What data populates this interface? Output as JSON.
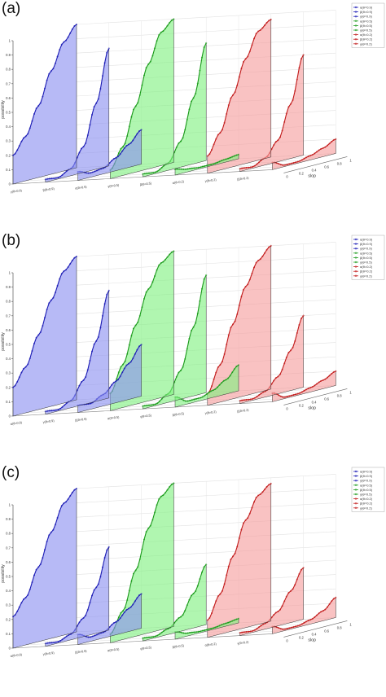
{
  "chart_data": [
    {
      "type": "line",
      "panel_label": "(a)",
      "chart_kind": "3d ribbon line",
      "ylabel": "possibility",
      "xlabel": "slop",
      "zlim": [
        0,
        1
      ],
      "z_ticks": [
        "0",
        "0.1",
        "0.2",
        "0.3",
        "0.4",
        "0.5",
        "0.6",
        "0.7",
        "0.8",
        "0.9",
        "1"
      ],
      "slop_ticks": [
        "0",
        "0.2",
        "0.4",
        "0.6",
        "0.8",
        "1"
      ],
      "grid": true,
      "legend_position": "top-right",
      "groups": [
        {
          "color": "#8a8ff0",
          "dark": "#1b1bb5"
        },
        {
          "color": "#80f080",
          "dark": "#1a9a1a"
        },
        {
          "color": "#f59c9c",
          "dark": "#c21a1a"
        }
      ],
      "series": [
        {
          "name": "α(θ=0.9)",
          "group": 0,
          "slop": [
            0,
            0.2,
            0.4,
            0.6,
            0.8,
            1
          ],
          "values": [
            0.2,
            0.31,
            0.5,
            0.72,
            0.9,
            1.0
          ]
        },
        {
          "name": "β(θ=0.9)",
          "group": 0,
          "slop": [
            0,
            0.2,
            0.4,
            0.6,
            0.8,
            1
          ],
          "values": [
            0.02,
            0.01,
            0.05,
            0.18,
            0.46,
            0.82
          ]
        },
        {
          "name": "γ(θ=0.9)",
          "group": 0,
          "slop": [
            0,
            0.2,
            0.4,
            0.6,
            0.8,
            1
          ],
          "values": [
            0.06,
            0.03,
            0.04,
            0.09,
            0.16,
            0.24
          ]
        },
        {
          "name": "α(θ=0.5)",
          "group": 1,
          "slop": [
            0,
            0.2,
            0.4,
            0.6,
            0.8,
            1
          ],
          "values": [
            0.06,
            0.2,
            0.46,
            0.73,
            0.93,
            1.0
          ]
        },
        {
          "name": "β(θ=0.5)",
          "group": 1,
          "slop": [
            0,
            0.2,
            0.4,
            0.6,
            0.8,
            1
          ],
          "values": [
            0.02,
            0.01,
            0.05,
            0.18,
            0.46,
            0.82
          ]
        },
        {
          "name": "γ(θ=0.5)",
          "group": 1,
          "slop": [
            0,
            0.2,
            0.4,
            0.6,
            0.8,
            1
          ],
          "values": [
            0.04,
            0.02,
            0.01,
            0.01,
            0.02,
            0.03
          ]
        },
        {
          "name": "α(θ=0.2)",
          "group": 2,
          "slop": [
            0,
            0.2,
            0.4,
            0.6,
            0.8,
            1
          ],
          "values": [
            0.12,
            0.26,
            0.5,
            0.73,
            0.9,
            0.96
          ]
        },
        {
          "name": "β(θ=0.2)",
          "group": 2,
          "slop": [
            0,
            0.2,
            0.4,
            0.6,
            0.8,
            1
          ],
          "values": [
            0.02,
            0.01,
            0.05,
            0.15,
            0.38,
            0.7
          ]
        },
        {
          "name": "γ(θ=0.2)",
          "group": 2,
          "slop": [
            0,
            0.2,
            0.4,
            0.6,
            0.8,
            1
          ],
          "values": [
            0.05,
            0.01,
            0.01,
            0.03,
            0.06,
            0.1
          ]
        }
      ],
      "axis_labels": [
        "γ(θ=0.9)",
        "β(θ=0.9)",
        "α(θ=0.5)",
        "γ(θ=0.5)",
        "β(θ=0.5)",
        "α(θ=0.2)",
        "γ(θ=0.2)",
        "β(θ=0.2)"
      ]
    },
    {
      "type": "line",
      "panel_label": "(b)",
      "chart_kind": "3d ribbon line",
      "ylabel": "possibility",
      "xlabel": "slop",
      "zlim": [
        0,
        1
      ],
      "z_ticks": [
        "0",
        "0.1",
        "0.2",
        "0.3",
        "0.4",
        "0.5",
        "0.6",
        "0.7",
        "0.8",
        "0.9",
        "1"
      ],
      "slop_ticks": [
        "0",
        "0.2",
        "0.4",
        "0.6",
        "0.8",
        "1"
      ],
      "grid": true,
      "legend_position": "top-right",
      "groups": [
        {
          "color": "#8a8ff0",
          "dark": "#1b1bb5"
        },
        {
          "color": "#80f080",
          "dark": "#1a9a1a"
        },
        {
          "color": "#f59c9c",
          "dark": "#c21a1a"
        }
      ],
      "series": [
        {
          "name": "α(θ=0.9)",
          "group": 0,
          "slop": [
            0,
            0.2,
            0.4,
            0.6,
            0.8,
            1
          ],
          "values": [
            0.2,
            0.32,
            0.52,
            0.74,
            0.92,
            1.0
          ]
        },
        {
          "name": "β(θ=0.9)",
          "group": 0,
          "slop": [
            0,
            0.2,
            0.4,
            0.6,
            0.8,
            1
          ],
          "values": [
            0.02,
            0.01,
            0.05,
            0.17,
            0.42,
            0.75
          ]
        },
        {
          "name": "γ(θ=0.9)",
          "group": 0,
          "slop": [
            0,
            0.2,
            0.4,
            0.6,
            0.8,
            1
          ],
          "values": [
            0.05,
            0.04,
            0.08,
            0.15,
            0.25,
            0.36
          ]
        },
        {
          "name": "α(θ=0.5)",
          "group": 1,
          "slop": [
            0,
            0.2,
            0.4,
            0.6,
            0.8,
            1
          ],
          "values": [
            0.12,
            0.3,
            0.55,
            0.78,
            0.94,
            1.0
          ]
        },
        {
          "name": "β(θ=0.5)",
          "group": 1,
          "slop": [
            0,
            0.2,
            0.4,
            0.6,
            0.8,
            1
          ],
          "values": [
            0.02,
            0.01,
            0.06,
            0.2,
            0.48,
            0.82
          ]
        },
        {
          "name": "γ(θ=0.5)",
          "group": 1,
          "slop": [
            0,
            0.2,
            0.4,
            0.6,
            0.8,
            1
          ],
          "values": [
            0.07,
            0.02,
            0.02,
            0.05,
            0.1,
            0.18
          ]
        },
        {
          "name": "α(θ=0.2)",
          "group": 2,
          "slop": [
            0,
            0.2,
            0.4,
            0.6,
            0.8,
            1
          ],
          "values": [
            0.08,
            0.26,
            0.52,
            0.76,
            0.92,
            1.0
          ]
        },
        {
          "name": "β(θ=0.2)",
          "group": 2,
          "slop": [
            0,
            0.2,
            0.4,
            0.6,
            0.8,
            1
          ],
          "values": [
            0.02,
            0.01,
            0.04,
            0.12,
            0.28,
            0.5
          ]
        },
        {
          "name": "γ(θ=0.2)",
          "group": 2,
          "slop": [
            0,
            0.2,
            0.4,
            0.6,
            0.8,
            1
          ],
          "values": [
            0.06,
            0.01,
            0.01,
            0.03,
            0.06,
            0.1
          ]
        }
      ],
      "axis_labels": [
        "α(θ=0.9)",
        "γ(θ=0.9)",
        "β(θ=0.9)",
        "α(θ=0.5)",
        "γ(θ=0.5)",
        "β(θ=0.5)",
        "γ(θ=0.2)",
        "β(θ=0.2)"
      ]
    },
    {
      "type": "line",
      "panel_label": "(c)",
      "chart_kind": "3d ribbon line",
      "ylabel": "possibility",
      "xlabel": "slop",
      "zlim": [
        0,
        1
      ],
      "z_ticks": [
        "0",
        "0.1",
        "0.2",
        "0.3",
        "0.4",
        "0.5",
        "0.6",
        "0.7",
        "0.8",
        "0.9",
        "1"
      ],
      "slop_ticks": [
        "0",
        "0.2",
        "0.4",
        "0.6",
        "0.8",
        "1"
      ],
      "grid": true,
      "legend_position": "top-right",
      "groups": [
        {
          "color": "#8a8ff0",
          "dark": "#1b1bb5"
        },
        {
          "color": "#80f080",
          "dark": "#1a9a1a"
        },
        {
          "color": "#f59c9c",
          "dark": "#c21a1a"
        }
      ],
      "series": [
        {
          "name": "α(θ=0.9)",
          "group": 0,
          "slop": [
            0,
            0.2,
            0.4,
            0.6,
            0.8,
            1
          ],
          "values": [
            0.22,
            0.33,
            0.52,
            0.74,
            0.92,
            1.0
          ]
        },
        {
          "name": "β(θ=0.9)",
          "group": 0,
          "slop": [
            0,
            0.2,
            0.4,
            0.6,
            0.8,
            1
          ],
          "values": [
            0.02,
            0.01,
            0.04,
            0.13,
            0.32,
            0.58
          ]
        },
        {
          "name": "γ(θ=0.9)",
          "group": 0,
          "slop": [
            0,
            0.2,
            0.4,
            0.6,
            0.8,
            1
          ],
          "values": [
            0.07,
            0.03,
            0.04,
            0.09,
            0.16,
            0.24
          ]
        },
        {
          "name": "α(θ=0.5)",
          "group": 1,
          "slop": [
            0,
            0.2,
            0.4,
            0.6,
            0.8,
            1
          ],
          "values": [
            0.06,
            0.2,
            0.46,
            0.73,
            0.93,
            1.0
          ]
        },
        {
          "name": "β(θ=0.5)",
          "group": 1,
          "slop": [
            0,
            0.2,
            0.4,
            0.6,
            0.8,
            1
          ],
          "values": [
            0.02,
            0.01,
            0.04,
            0.1,
            0.24,
            0.42
          ]
        },
        {
          "name": "γ(θ=0.5)",
          "group": 1,
          "slop": [
            0,
            0.2,
            0.4,
            0.6,
            0.8,
            1
          ],
          "values": [
            0.05,
            0.02,
            0.01,
            0.01,
            0.02,
            0.03
          ]
        },
        {
          "name": "α(θ=0.2)",
          "group": 2,
          "slop": [
            0,
            0.2,
            0.4,
            0.6,
            0.8,
            1
          ],
          "values": [
            0.12,
            0.28,
            0.52,
            0.75,
            0.9,
            0.96
          ]
        },
        {
          "name": "β(θ=0.2)",
          "group": 2,
          "slop": [
            0,
            0.2,
            0.4,
            0.6,
            0.8,
            1
          ],
          "values": [
            0.02,
            0.01,
            0.04,
            0.1,
            0.22,
            0.36
          ]
        },
        {
          "name": "γ(θ=0.2)",
          "group": 2,
          "slop": [
            0,
            0.2,
            0.4,
            0.6,
            0.8,
            1
          ],
          "values": [
            0.05,
            0.01,
            0.01,
            0.03,
            0.07,
            0.14
          ]
        }
      ],
      "axis_labels": [
        "α(θ=0.9)",
        "γ(θ=0.9)",
        "β(θ=0.9)",
        "α(θ=0.5)",
        "γ(θ=0.5)",
        "β(θ=0.5)",
        "α(θ=0.2)",
        "γ(θ=0.2)"
      ]
    }
  ]
}
